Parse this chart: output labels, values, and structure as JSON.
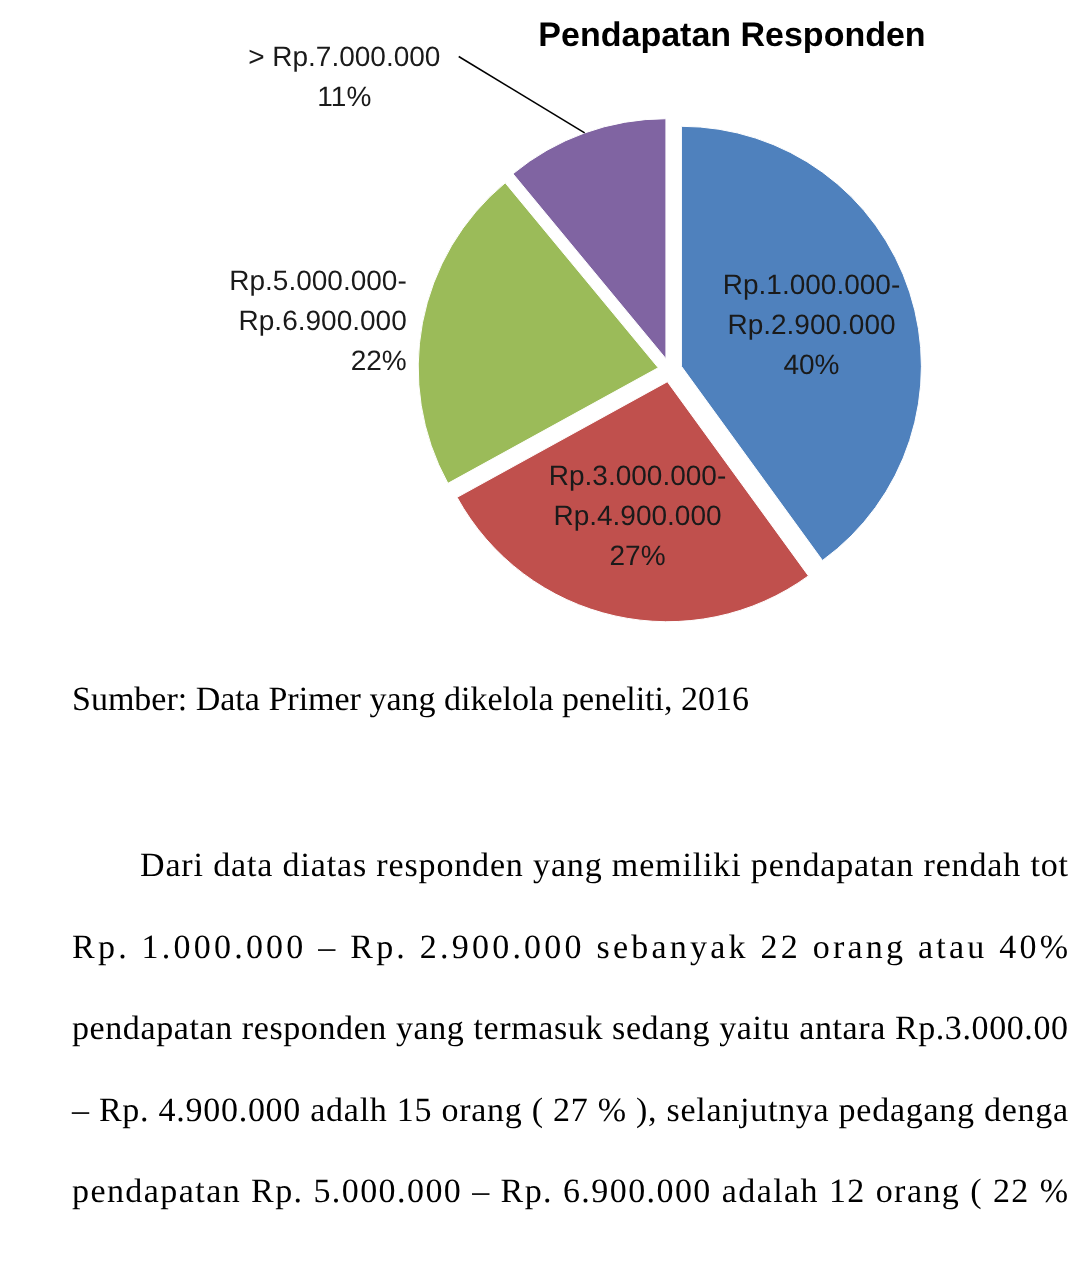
{
  "chart_data": {
    "type": "pie",
    "title": "Pendapatan Responden",
    "categories": [
      "Rp.1.000.000-Rp.2.900.000",
      "Rp.3.000.000-Rp.4.900.000",
      "Rp.5.000.000-Rp.6.900.000",
      "> Rp.7.000.000"
    ],
    "values": [
      40,
      27,
      22,
      11
    ],
    "colors": [
      "#4f81bd",
      "#c0504d",
      "#9bbb59",
      "#8064a2"
    ],
    "value_labels": [
      "40%",
      "27%",
      "22%",
      "11%"
    ],
    "annotations": [
      "Sumber: Data Primer yang dikelola peneliti, 2016",
      "Dari data diatas responden yang memiliki pendapatan rendah tot",
      "Rp. 1.000.000 – Rp. 2.900.000 sebanyak 22 orang atau 40%",
      "pendapatan responden yang termasuk sedang yaitu antara Rp.3.000.00",
      "– Rp. 4.900.000 adalh 15 orang ( 27 % ), selanjutnya pedagang denga",
      "pendapatan Rp. 5.000.000 – Rp. 6.900.000 adalah 12 orang ( 22 %"
    ]
  }
}
